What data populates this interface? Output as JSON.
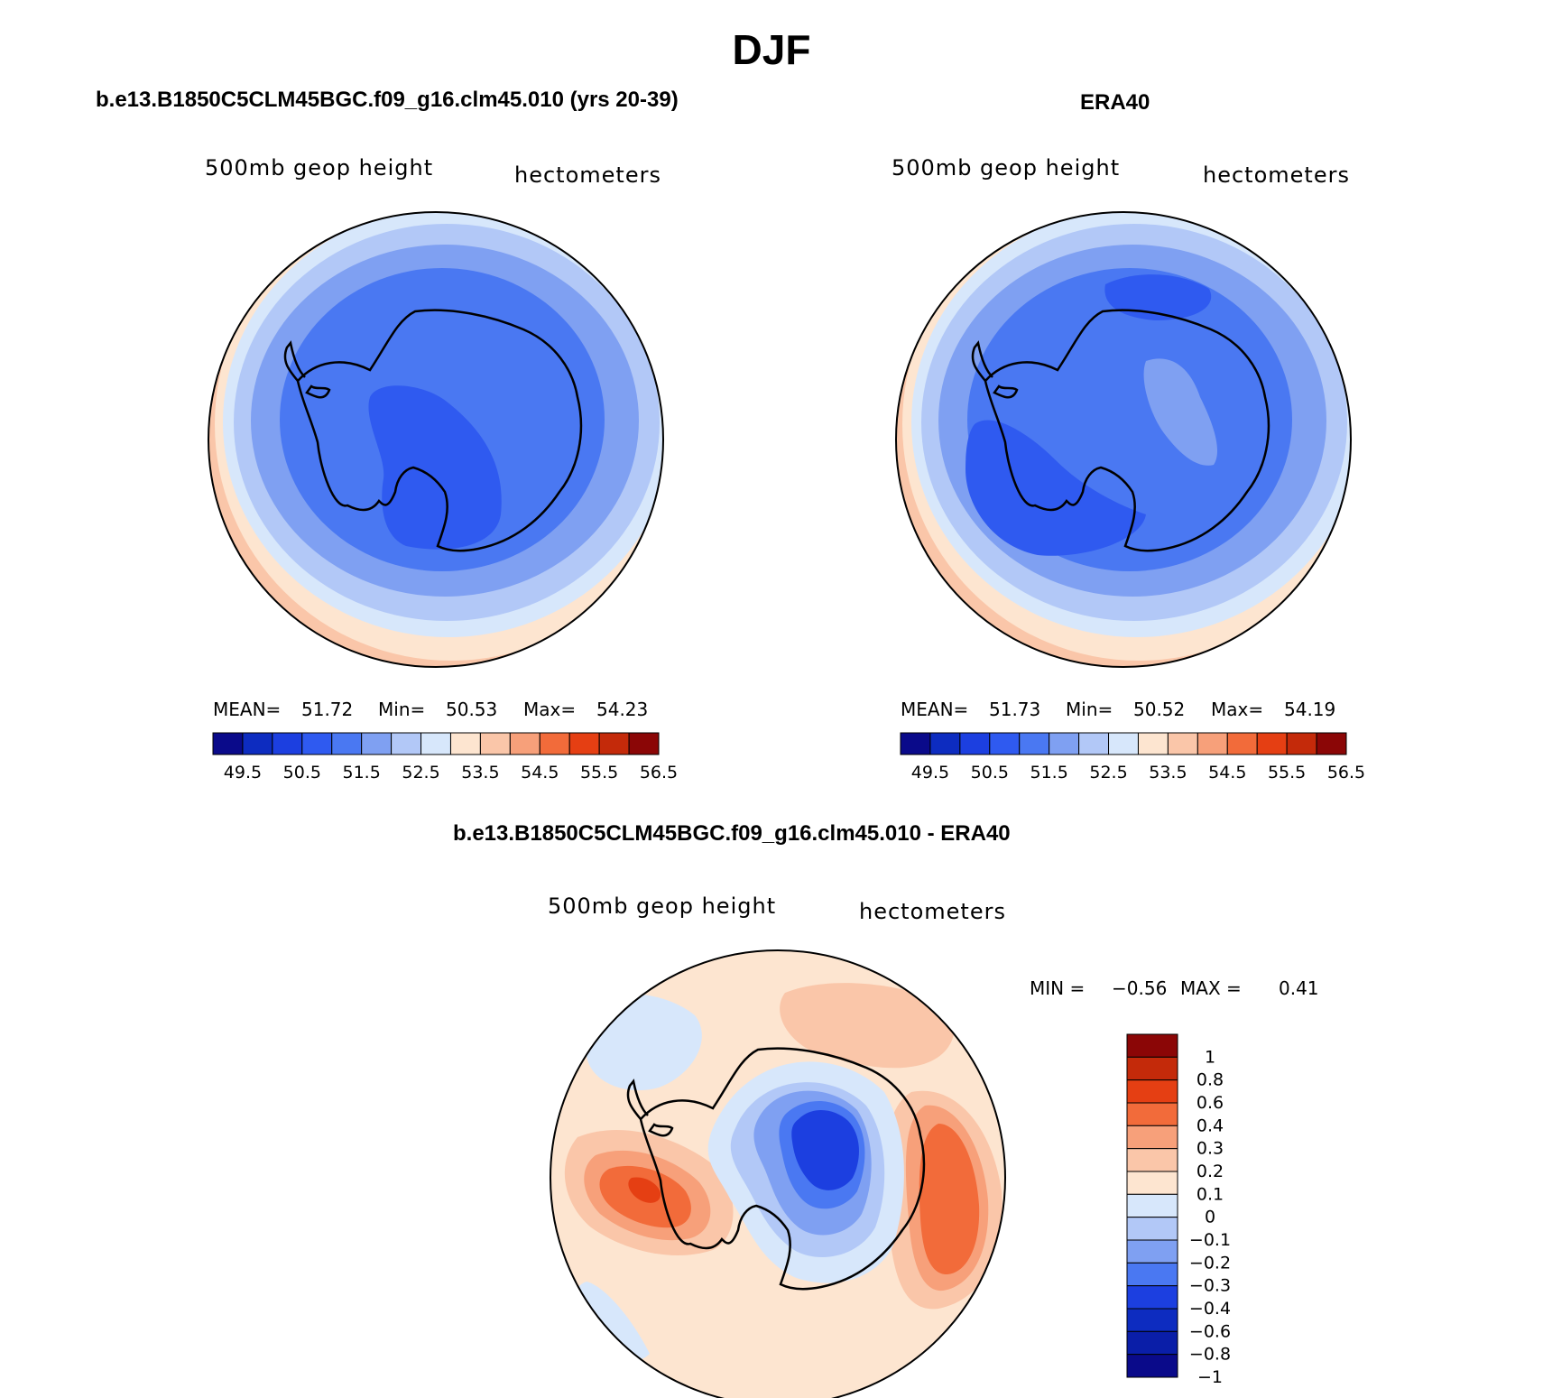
{
  "title": "DJF",
  "panels": {
    "model": {
      "header": "b.e13.B1850C5CLM45BGC.f09_g16.clm45.010 (yrs 20-39)",
      "variable": "500mb geop height",
      "units": "hectometers",
      "mean_label": "MEAN=",
      "mean": "51.72",
      "min_label": "Min=",
      "min": "50.53",
      "max_label": "Max=",
      "max": "54.23"
    },
    "obs": {
      "header": "ERA40",
      "variable": "500mb geop height",
      "units": "hectometers",
      "mean_label": "MEAN=",
      "mean": "51.73",
      "min_label": "Min=",
      "min": "50.52",
      "max_label": "Max=",
      "max": "54.19"
    },
    "diff": {
      "header": "b.e13.B1850C5CLM45BGC.f09_g16.clm45.010 - ERA40",
      "variable": "500mb geop height",
      "units": "hectometers",
      "min_label": "MIN =",
      "min": "−0.56",
      "max_label": "MAX =",
      "max": "0.41"
    }
  },
  "chart_data": [
    {
      "type": "heatmap",
      "name": "model",
      "projection": "south polar stereographic",
      "colorbar_levels": [
        "49.5",
        "50.5",
        "51.5",
        "52.5",
        "53.5",
        "54.5",
        "55.5",
        "56.5"
      ],
      "colorbar_colors": [
        "#0a0a8a",
        "#0d2cc0",
        "#1c3fe0",
        "#2f5af0",
        "#4a78f2",
        "#7fa0f2",
        "#b2c8f7",
        "#d7e7fb",
        "#fde5d0",
        "#fac6a9",
        "#f7a07a",
        "#f26b3a",
        "#e53f13",
        "#c42a0a",
        "#8b0606"
      ],
      "rings": [
        {
          "level": "52.5-53.0",
          "color": "#fde5d0"
        },
        {
          "level": "52.5",
          "color": "#d7e7fb"
        },
        {
          "level": "52.0",
          "color": "#b2c8f7"
        },
        {
          "level": "51.5",
          "color": "#7fa0f2"
        },
        {
          "level": "51.0",
          "color": "#4a78f2"
        },
        {
          "level": "50.5",
          "color": "#2f5af0"
        }
      ]
    },
    {
      "type": "heatmap",
      "name": "obs",
      "projection": "south polar stereographic",
      "colorbar_levels": [
        "49.5",
        "50.5",
        "51.5",
        "52.5",
        "53.5",
        "54.5",
        "55.5",
        "56.5"
      ],
      "colorbar_colors": [
        "#0a0a8a",
        "#0d2cc0",
        "#1c3fe0",
        "#2f5af0",
        "#4a78f2",
        "#7fa0f2",
        "#b2c8f7",
        "#d7e7fb",
        "#fde5d0",
        "#fac6a9",
        "#f7a07a",
        "#f26b3a",
        "#e53f13",
        "#c42a0a",
        "#8b0606"
      ]
    },
    {
      "type": "heatmap",
      "name": "difference",
      "projection": "south polar stereographic",
      "colorbar_levels": [
        "1",
        "0.8",
        "0.6",
        "0.4",
        "0.3",
        "0.2",
        "0.1",
        "0",
        "−0.1",
        "−0.2",
        "−0.3",
        "−0.4",
        "−0.6",
        "−0.8",
        "−1"
      ],
      "colorbar_colors": [
        "#8b0606",
        "#c42a0a",
        "#e53f13",
        "#f26b3a",
        "#f7a07a",
        "#fac6a9",
        "#fde5d0",
        "#d7e7fb",
        "#b2c8f7",
        "#7fa0f2",
        "#4a78f2",
        "#1c3fe0",
        "#0d2cc0",
        "#0a1ea8",
        "#0a0a8a"
      ]
    }
  ]
}
